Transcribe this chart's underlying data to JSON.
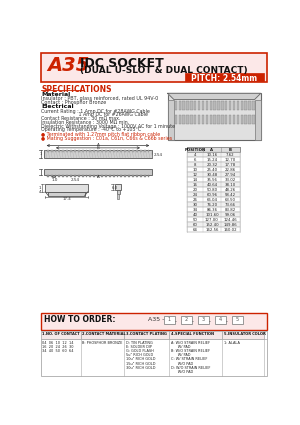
{
  "title_code": "A35",
  "title_main": "IDC SOCKET",
  "title_sub": "(DUAL U-SLOT & DUAL CONTACT)",
  "pitch_label": "PITCH: 2.54mm",
  "spec_title": "SPECIFICATIONS",
  "material_title": "Material",
  "material_lines": [
    "Insulator : PBT, glass reinforced, rated UL 94V-0",
    "Contact : Phosphor Bronze"
  ],
  "electrical_title": "Electrical",
  "electrical_lines": [
    "Current Rating : 1 Amp DC for #28AWG Cable",
    "                         1 Amp DC for #26AWG Cable",
    "Contact Resistance : 30 mΩ max.",
    "Insulation Resistance : 3000 MΩ min.",
    "Dielectric Withstanding Voltage : 1000V AC for 1 minute",
    "Operating Temperature : -40°C to +105°C"
  ],
  "bullet_lines": [
    "● Terminated with 1.27mm pitch flat ribbon cable",
    "● Mating Suggestion : C01a, C61n, C66s & C66b series"
  ],
  "how_to_order": "HOW TO ORDER:",
  "order_code": "A35 -",
  "order_fields": [
    "1",
    "2",
    "3",
    "4",
    "5"
  ],
  "table_headers": [
    "1.NO. OF CONTACT",
    "2.CONTACT MATERIAL",
    "3.CONTACT PLATING",
    "4.SPECIAL FUNCTION",
    "5.INSULATOR COLOR"
  ],
  "table_col1": [
    "04  06  10  12  14",
    "16  20  24  26  30",
    "34  40  50  60  64"
  ],
  "table_col2": [
    "B: PHOSPHOR BRONZE"
  ],
  "table_col3": [
    "D: TIN PLATING",
    "E: SOLDER DIP",
    "G: GOLD FLASH",
    "5u\" RICH GOLD",
    "10u\" RICH GOLD",
    "15u\" RICH GOLD",
    "30u\" RICH GOLD"
  ],
  "table_col4": [
    "A: W/O STRAIN RELIEF",
    "      W/ PAD",
    "B: W/O STRAIN RELIEF",
    "      W/ PAD",
    "C: W/ STRAIN RELIEF",
    "      W/O PAD",
    "D: W/O STRAIN RELIEF",
    "      W/O PAD"
  ],
  "table_col5": [
    "1: ALALA"
  ],
  "position_headers": [
    "POSITION",
    "A",
    "B"
  ],
  "position_data": [
    [
      "4",
      "10.16",
      "7.62"
    ],
    [
      "6",
      "15.24",
      "12.70"
    ],
    [
      "8",
      "20.32",
      "17.78"
    ],
    [
      "10",
      "25.40",
      "22.86"
    ],
    [
      "12",
      "30.48",
      "27.94"
    ],
    [
      "14",
      "35.56",
      "33.02"
    ],
    [
      "16",
      "40.64",
      "38.10"
    ],
    [
      "20",
      "50.80",
      "48.26"
    ],
    [
      "24",
      "60.96",
      "58.42"
    ],
    [
      "26",
      "66.04",
      "63.50"
    ],
    [
      "30",
      "76.20",
      "73.66"
    ],
    [
      "34",
      "86.36",
      "83.82"
    ],
    [
      "40",
      "101.60",
      "99.06"
    ],
    [
      "50",
      "127.00",
      "124.46"
    ],
    [
      "60",
      "152.40",
      "149.86"
    ],
    [
      "64",
      "162.56",
      "160.02"
    ]
  ],
  "bg_color": "#ffffff",
  "header_bg": "#fce8e8",
  "header_red": "#cc2200",
  "bullet_red": "#cc2200",
  "table_bg": "#fce8e8",
  "border_color": "#aaaaaa",
  "text_color": "#111111",
  "dim_color": "#444444",
  "draw_gray": "#c8c8c8",
  "draw_dark": "#555555"
}
